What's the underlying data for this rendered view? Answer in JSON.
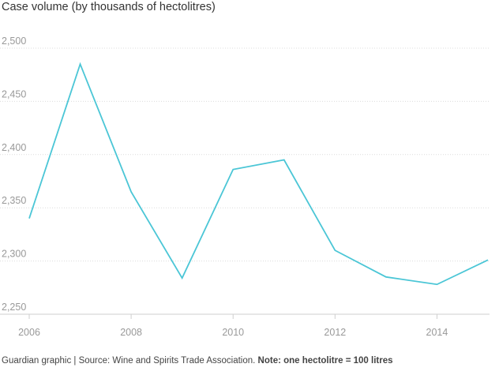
{
  "chart_data": {
    "type": "line",
    "title": "Case volume (by thousands of hectolitres)",
    "x": [
      2006,
      2007,
      2008,
      2009,
      2010,
      2011,
      2012,
      2013,
      2014,
      2015
    ],
    "series": [
      {
        "values": [
          2340,
          2485,
          2365,
          2284,
          2386,
          2395,
          2310,
          2285,
          2278,
          2301
        ]
      }
    ],
    "xticks": [
      "2006",
      "2008",
      "2010",
      "2012",
      "2014"
    ],
    "xtick_values": [
      2006,
      2008,
      2010,
      2012,
      2014
    ],
    "yticks": [
      "2,250",
      "2,300",
      "2,350",
      "2,400",
      "2,450",
      "2,500"
    ],
    "ytick_values": [
      2250,
      2300,
      2350,
      2400,
      2450,
      2500
    ],
    "xlim": [
      2006,
      2015
    ],
    "ylim": [
      2250,
      2500
    ],
    "grid": true,
    "line_color": "#4bc6d6",
    "grid_color": "#dcdcdc"
  },
  "footer": {
    "source": "Guardian graphic | Source: Wine and Spirits Trade Association.",
    "note": "Note: one hectolitre = 100 litres"
  }
}
